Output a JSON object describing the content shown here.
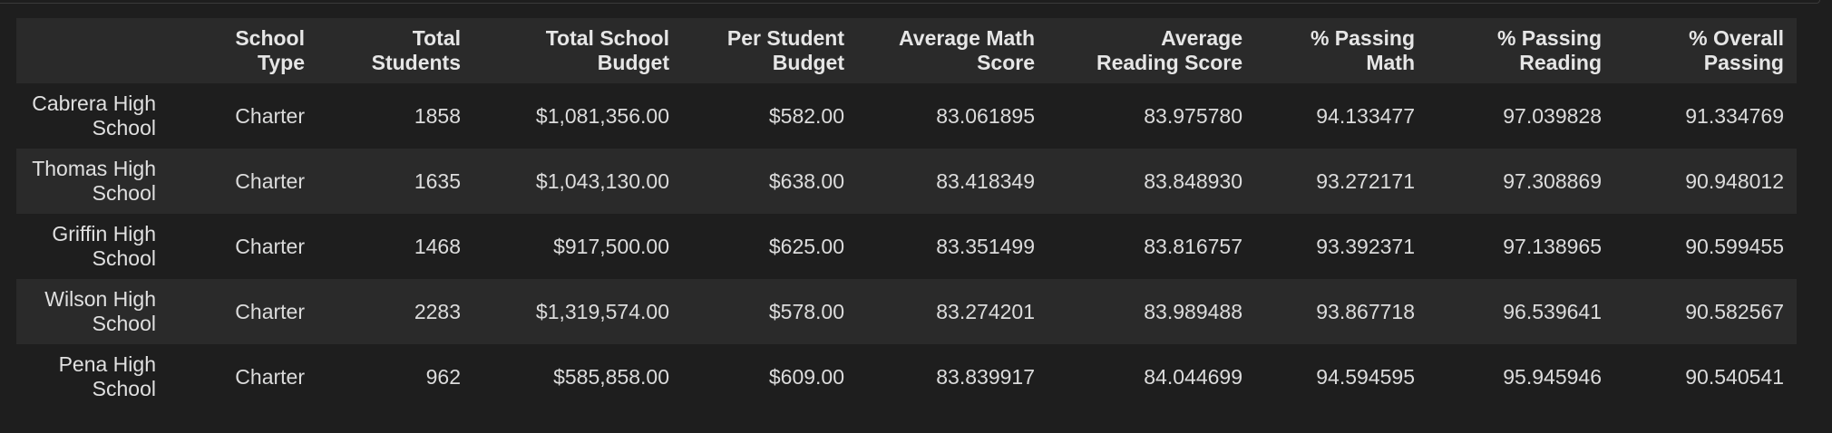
{
  "table": {
    "index_header": "",
    "columns": [
      [
        "School",
        "Type"
      ],
      [
        "Total",
        "Students"
      ],
      [
        "Total School",
        "Budget"
      ],
      [
        "Per Student",
        "Budget"
      ],
      [
        "Average Math",
        "Score"
      ],
      [
        "Average",
        "Reading Score"
      ],
      [
        "% Passing",
        "Math"
      ],
      [
        "% Passing",
        "Reading"
      ],
      [
        "% Overall",
        "Passing"
      ]
    ],
    "rows": [
      {
        "index": [
          "Cabrera High",
          "School"
        ],
        "cells": [
          "Charter",
          "1858",
          "$1,081,356.00",
          "$582.00",
          "83.061895",
          "83.975780",
          "94.133477",
          "97.039828",
          "91.334769"
        ]
      },
      {
        "index": [
          "Thomas High",
          "School"
        ],
        "cells": [
          "Charter",
          "1635",
          "$1,043,130.00",
          "$638.00",
          "83.418349",
          "83.848930",
          "93.272171",
          "97.308869",
          "90.948012"
        ]
      },
      {
        "index": [
          "Griffin High",
          "School"
        ],
        "cells": [
          "Charter",
          "1468",
          "$917,500.00",
          "$625.00",
          "83.351499",
          "83.816757",
          "93.392371",
          "97.138965",
          "90.599455"
        ]
      },
      {
        "index": [
          "Wilson High",
          "School"
        ],
        "cells": [
          "Charter",
          "2283",
          "$1,319,574.00",
          "$578.00",
          "83.274201",
          "83.989488",
          "93.867718",
          "96.539641",
          "90.582567"
        ]
      },
      {
        "index": [
          "Pena High",
          "School"
        ],
        "cells": [
          "Charter",
          "962",
          "$585,858.00",
          "$609.00",
          "83.839917",
          "84.044699",
          "94.594595",
          "95.945946",
          "90.540541"
        ]
      }
    ]
  }
}
